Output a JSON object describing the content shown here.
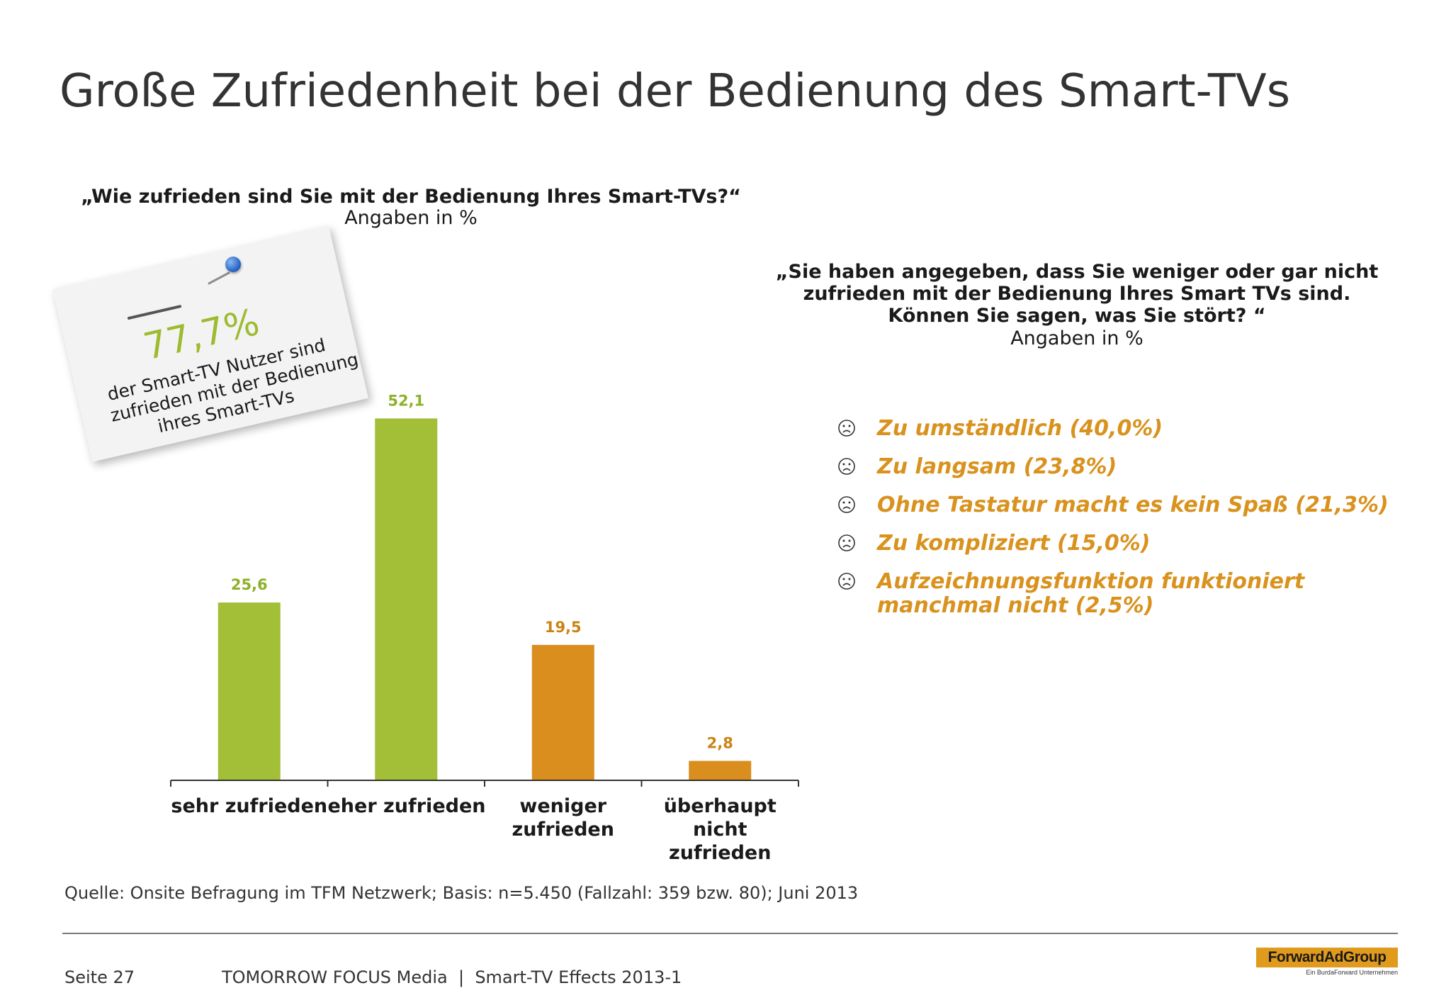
{
  "title": "Große Zufriedenheit bei der Bedienung des Smart-TVs",
  "left_panel": {
    "question": "„Wie zufrieden sind Sie mit der Bedienung Ihres Smart-TVs?“",
    "unit": "Angaben in %"
  },
  "note": {
    "percent": "77,7%",
    "line1": "der Smart-TV Nutzer sind",
    "line2": "zufrieden mit der Bedienung",
    "line3": "ihres Smart-TVs"
  },
  "chart_data": {
    "type": "bar",
    "categories": [
      "sehr zufrieden",
      "eher zufrieden",
      "weniger zufrieden",
      "überhaupt nicht zufrieden"
    ],
    "category_lines": [
      [
        "sehr zufrieden"
      ],
      [
        "eher zufrieden"
      ],
      [
        "weniger",
        "zufrieden"
      ],
      [
        "überhaupt",
        "nicht",
        "zufrieden"
      ]
    ],
    "values": [
      25.6,
      52.1,
      19.5,
      2.8
    ],
    "value_labels": [
      "25,6",
      "52,1",
      "19,5",
      "2,8"
    ],
    "bar_colors": [
      "#a2bf37",
      "#a2bf37",
      "#d98e1e",
      "#d98e1e"
    ],
    "label_colors": [
      "#8fb02a",
      "#8fb02a",
      "#c98416",
      "#c98416"
    ],
    "ylim": [
      0,
      55
    ],
    "grid": false,
    "legend": "none",
    "title": "",
    "xlabel": "",
    "ylabel": ""
  },
  "right_panel": {
    "question_line1": "„Sie haben angegeben, dass Sie weniger oder gar nicht",
    "question_line2": "zufrieden mit der Bedienung Ihres Smart TVs sind.",
    "question_line3": "Können Sie sagen, was Sie stört? “",
    "unit": "Angaben in %",
    "icon": "sad-face-icon",
    "reason_color": "#d9921e",
    "reasons": [
      "Zu umständlich (40,0%)",
      "Zu langsam (23,8%)",
      "Ohne Tastatur macht es kein Spaß (21,3%)",
      "Zu kompliziert (15,0%)",
      "Aufzeichnungsfunktion funktioniert manchmal nicht (2,5%)"
    ]
  },
  "source": "Quelle: Onsite Befragung im TFM Netzwerk; Basis: n=5.450 (Fallzahl: 359 bzw. 80); Juni 2013",
  "footer": {
    "page": "Seite 27",
    "text": "TOMORROW FOCUS Media  |  Smart-TV Effects 2013-1",
    "logo": "ForwardAdGroup",
    "logo_tagline": "Ein BurdaForward Unternehmen"
  }
}
